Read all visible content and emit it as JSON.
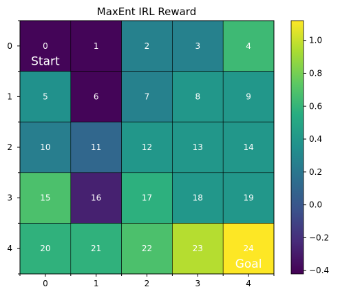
{
  "chart_data": {
    "type": "heatmap",
    "title": "MaxEnt IRL Reward",
    "xlabel": "",
    "ylabel": "",
    "x_ticks": [
      "0",
      "1",
      "2",
      "3",
      "4"
    ],
    "y_ticks": [
      "0",
      "1",
      "2",
      "3",
      "4"
    ],
    "rows": 5,
    "cols": 5,
    "cell_labels": [
      [
        "0",
        "1",
        "2",
        "3",
        "4"
      ],
      [
        "5",
        "6",
        "7",
        "8",
        "9"
      ],
      [
        "10",
        "11",
        "12",
        "13",
        "14"
      ],
      [
        "15",
        "16",
        "17",
        "18",
        "19"
      ],
      [
        "20",
        "21",
        "22",
        "23",
        "24"
      ]
    ],
    "values": [
      [
        -0.4,
        -0.4,
        0.26,
        0.26,
        0.63
      ],
      [
        0.36,
        -0.4,
        0.26,
        0.4,
        0.4
      ],
      [
        0.24,
        0.1,
        0.4,
        0.4,
        0.4
      ],
      [
        0.68,
        -0.27,
        0.57,
        0.4,
        0.4
      ],
      [
        0.58,
        0.58,
        0.68,
        0.96,
        1.12
      ]
    ],
    "annotations": [
      {
        "row": 0,
        "col": 0,
        "text": "Start"
      },
      {
        "row": 4,
        "col": 4,
        "text": "Goal"
      }
    ],
    "colormap": "viridis",
    "colorbar": {
      "range": [
        -0.42,
        1.12
      ],
      "ticks": [
        "1.0",
        "0.8",
        "0.6",
        "0.4",
        "0.2",
        "0.0",
        "−0.2",
        "−0.4"
      ],
      "tick_values": [
        1.0,
        0.8,
        0.6,
        0.4,
        0.2,
        0.0,
        -0.2,
        -0.4
      ]
    },
    "grid": true
  }
}
